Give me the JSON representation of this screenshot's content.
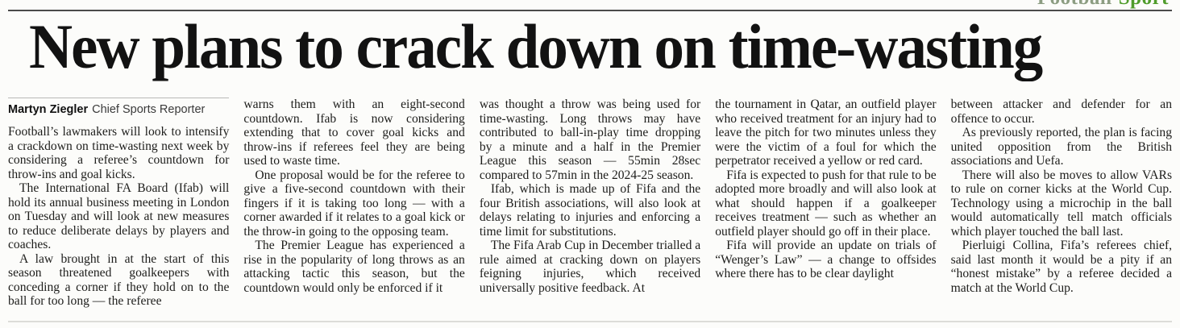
{
  "kicker": {
    "section_label": "Football",
    "sport_label": "Sport"
  },
  "headline": "New plans to crack down on time-wasting",
  "byline": {
    "author": "Martyn Ziegler",
    "role": "Chief Sports Reporter"
  },
  "colors": {
    "kicker_section": "#8c9d82",
    "kicker_sport": "#4f9c2b",
    "headline_text": "#121212",
    "body_text": "#1d1d1b",
    "top_rule": "#4a4a4a",
    "byline_rule": "#b9b9b7",
    "bottom_rule": "#dcdcd8",
    "background": "#fcfcfa"
  },
  "columns": [
    {
      "paragraphs": [
        {
          "text": "Football’s lawmakers will look to intensify a crackdown on time-wasting next week by considering a referee’s countdown for throw-ins and goal kicks."
        },
        {
          "text": "The International FA Board (Ifab) will hold its annual business meeting in London on Tuesday and will look at new measures to reduce deliberate delays by players and coaches."
        },
        {
          "text": "A law brought in at the start of this season threatened goalkeepers with conceding a corner if they hold on to the ball for too long — the referee"
        }
      ]
    },
    {
      "paragraphs": [
        {
          "text": "warns them with an eight-second countdown. Ifab is now considering extending that to cover goal kicks and throw-ins if referees feel they are being used to waste time."
        },
        {
          "text": "One proposal would be for the referee to give a five-second countdown with their fingers if it is taking too long — with a corner awarded if it relates to a goal kick or the throw-in going to the opposing team."
        },
        {
          "text": "The Premier League has experienced a rise in the popularity of long throws as an attacking tactic this season, but the countdown would only be enforced if it"
        }
      ]
    },
    {
      "paragraphs": [
        {
          "text": "was thought a throw was being used for time-wasting. Long throws may have contributed to ball-in-play time dropping by a minute and a half in the Premier League this season — 55min 28sec compared to 57min in the 2024-25 season."
        },
        {
          "text": "Ifab, which is made up of Fifa and the four British associations, will also look at delays relating to injuries and enforcing a time limit for substitutions."
        },
        {
          "text": "The Fifa Arab Cup in December trialled a rule aimed at cracking down on players feigning injuries, which received universally positive feedback. At"
        }
      ]
    },
    {
      "paragraphs": [
        {
          "text": "the tournament in Qatar, an outfield player who received treatment for an injury had to leave the pitch for two minutes unless they were the victim of a foul for which the perpetrator received a yellow or red card."
        },
        {
          "text": "Fifa is expected to push for that rule to be adopted more broadly and will also look at what should happen if a goalkeeper receives treatment — such as whether an outfield player should go off in their place."
        },
        {
          "text": "Fifa will provide an update on trials of “Wenger’s Law” — a change to offsides where there has to be clear daylight"
        }
      ]
    },
    {
      "paragraphs": [
        {
          "text": "between attacker and defender for an offence to occur."
        },
        {
          "text": "As previously reported, the plan is facing united opposition from the British associations and Uefa."
        },
        {
          "text": "There will also be moves to allow VARs to rule on corner kicks at the World Cup. Technology using a microchip in the ball would automatically tell match officials which player touched the ball last."
        },
        {
          "text": "Pierluigi Collina, Fifa’s referees chief, said last month it would be a pity if an “honest mistake” by a referee decided a match at the World Cup."
        }
      ]
    }
  ]
}
